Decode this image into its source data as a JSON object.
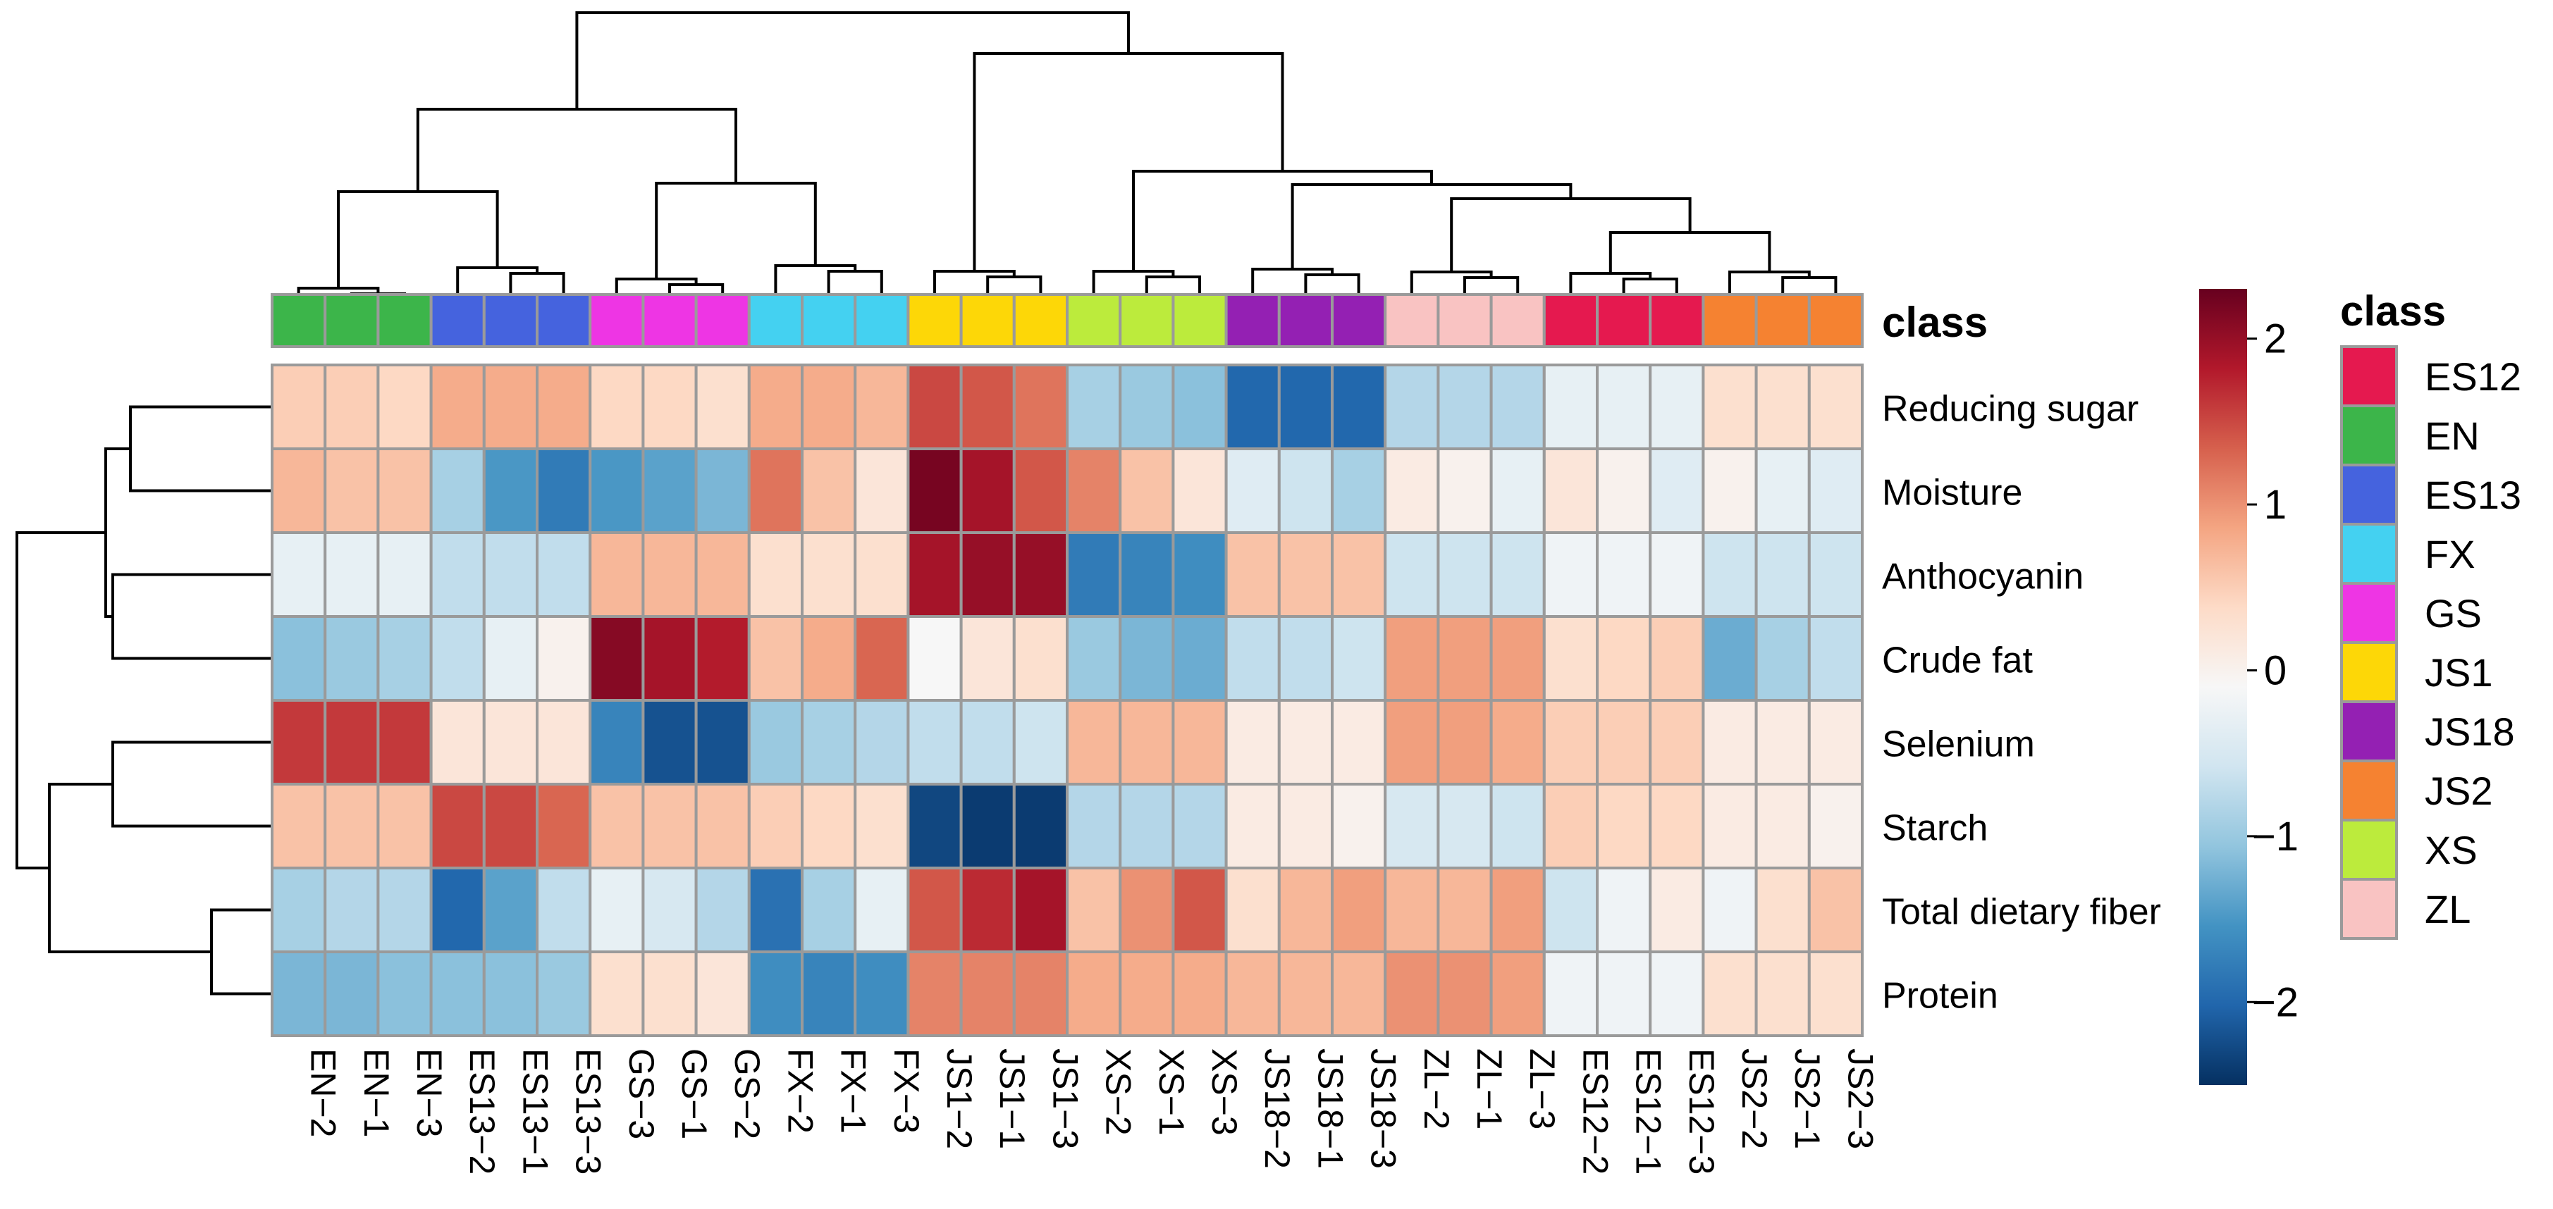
{
  "chart_data": {
    "type": "heatmap",
    "title": "",
    "columns": [
      "EN−2",
      "EN−1",
      "EN−3",
      "ES13−2",
      "ES13−1",
      "ES13−3",
      "GS−3",
      "GS−1",
      "GS−2",
      "FX−2",
      "FX−1",
      "FX−3",
      "JS1−2",
      "JS1−1",
      "JS1−3",
      "XS−2",
      "XS−1",
      "XS−3",
      "JS18−2",
      "JS18−1",
      "JS18−3",
      "ZL−2",
      "ZL−1",
      "ZL−3",
      "ES12−2",
      "ES12−1",
      "ES12−3",
      "JS2−2",
      "JS2−1",
      "JS2−3"
    ],
    "rows": [
      "Reducing sugar",
      "Moisture",
      "Anthocyanin",
      "Crude fat",
      "Selenium",
      "Starch",
      "Total dietary fiber",
      "Protein"
    ],
    "column_class": [
      "EN",
      "EN",
      "EN",
      "ES13",
      "ES13",
      "ES13",
      "GS",
      "GS",
      "GS",
      "FX",
      "FX",
      "FX",
      "JS1",
      "JS1",
      "JS1",
      "XS",
      "XS",
      "XS",
      "JS18",
      "JS18",
      "JS18",
      "ZL",
      "ZL",
      "ZL",
      "ES12",
      "ES12",
      "ES12",
      "JS2",
      "JS2",
      "JS2"
    ],
    "values": [
      [
        0.5,
        0.5,
        0.4,
        0.8,
        0.8,
        0.8,
        0.4,
        0.4,
        0.3,
        0.8,
        0.8,
        0.7,
        1.5,
        1.4,
        1.2,
        -0.9,
        -1.0,
        -1.1,
        -2.0,
        -2.0,
        -2.0,
        -0.8,
        -0.8,
        -0.8,
        -0.3,
        -0.3,
        -0.3,
        0.3,
        0.3,
        0.3
      ],
      [
        0.7,
        0.6,
        0.6,
        -0.9,
        -1.5,
        -1.8,
        -1.5,
        -1.4,
        -1.2,
        1.2,
        0.6,
        0.2,
        2.2,
        1.9,
        1.4,
        1.1,
        0.6,
        0.2,
        -0.4,
        -0.6,
        -0.9,
        0.1,
        0.0,
        -0.3,
        0.2,
        0.0,
        -0.4,
        0.0,
        -0.3,
        -0.4
      ],
      [
        -0.3,
        -0.3,
        -0.3,
        -0.7,
        -0.7,
        -0.7,
        0.7,
        0.7,
        0.7,
        0.3,
        0.3,
        0.3,
        1.9,
        2.0,
        2.0,
        -1.8,
        -1.7,
        -1.6,
        0.6,
        0.6,
        0.6,
        -0.6,
        -0.6,
        -0.6,
        -0.2,
        -0.2,
        -0.2,
        -0.6,
        -0.6,
        -0.6
      ],
      [
        -1.1,
        -1.0,
        -0.9,
        -0.7,
        -0.3,
        0.0,
        2.1,
        1.9,
        1.8,
        0.6,
        0.8,
        1.3,
        -0.1,
        0.2,
        0.3,
        -1.0,
        -1.2,
        -1.3,
        -0.7,
        -0.7,
        -0.6,
        0.9,
        0.9,
        0.9,
        0.3,
        0.4,
        0.5,
        -1.3,
        -0.9,
        -0.7
      ],
      [
        1.6,
        1.6,
        1.6,
        0.2,
        0.2,
        0.2,
        -1.7,
        -2.2,
        -2.2,
        -1.0,
        -0.9,
        -0.8,
        -0.7,
        -0.7,
        -0.6,
        0.7,
        0.7,
        0.7,
        0.1,
        0.1,
        0.1,
        0.9,
        0.9,
        0.8,
        0.5,
        0.5,
        0.5,
        0.1,
        0.1,
        0.1
      ],
      [
        0.6,
        0.6,
        0.6,
        1.5,
        1.5,
        1.3,
        0.6,
        0.6,
        0.6,
        0.5,
        0.4,
        0.3,
        -2.3,
        -2.4,
        -2.4,
        -0.8,
        -0.8,
        -0.8,
        0.1,
        0.1,
        0.0,
        -0.5,
        -0.5,
        -0.6,
        0.5,
        0.4,
        0.4,
        0.1,
        0.1,
        0.0
      ],
      [
        -0.9,
        -0.8,
        -0.8,
        -2.0,
        -1.4,
        -0.7,
        -0.3,
        -0.5,
        -0.8,
        -1.9,
        -0.9,
        -0.3,
        1.4,
        1.7,
        1.9,
        0.6,
        1.0,
        1.4,
        0.3,
        0.7,
        0.9,
        0.7,
        0.7,
        0.9,
        -0.6,
        -0.2,
        0.1,
        -0.2,
        0.3,
        0.6
      ],
      [
        -1.2,
        -1.2,
        -1.1,
        -1.1,
        -1.1,
        -1.0,
        0.3,
        0.3,
        0.2,
        -1.6,
        -1.7,
        -1.6,
        1.1,
        1.1,
        1.1,
        0.8,
        0.8,
        0.8,
        0.7,
        0.7,
        0.7,
        1.0,
        1.0,
        0.9,
        -0.2,
        -0.2,
        -0.2,
        0.3,
        0.3,
        0.3
      ]
    ],
    "class_label": "class",
    "classes": [
      {
        "name": "ES12",
        "color": "#E5194F"
      },
      {
        "name": "EN",
        "color": "#3CB54A"
      },
      {
        "name": "ES13",
        "color": "#4563DE"
      },
      {
        "name": "FX",
        "color": "#44D1F1"
      },
      {
        "name": "GS",
        "color": "#EE35E4"
      },
      {
        "name": "JS1",
        "color": "#FDD707"
      },
      {
        "name": "JS18",
        "color": "#9420B3"
      },
      {
        "name": "JS2",
        "color": "#F58231"
      },
      {
        "name": "XS",
        "color": "#BCEB3C"
      },
      {
        "name": "ZL",
        "color": "#F9C3C2"
      }
    ],
    "colorbar": {
      "range": [
        -2.5,
        2.3
      ],
      "ticks": [
        2,
        1,
        0,
        -1,
        -2
      ],
      "tick_labels": [
        "2",
        "1",
        "0",
        "−1",
        "−2"
      ],
      "colors": [
        "#053061",
        "#2166AC",
        "#4393C3",
        "#92C5DE",
        "#D1E5F0",
        "#F7F7F7",
        "#FDDBC7",
        "#F4A582",
        "#D6604D",
        "#B2182B",
        "#67001F"
      ]
    }
  }
}
